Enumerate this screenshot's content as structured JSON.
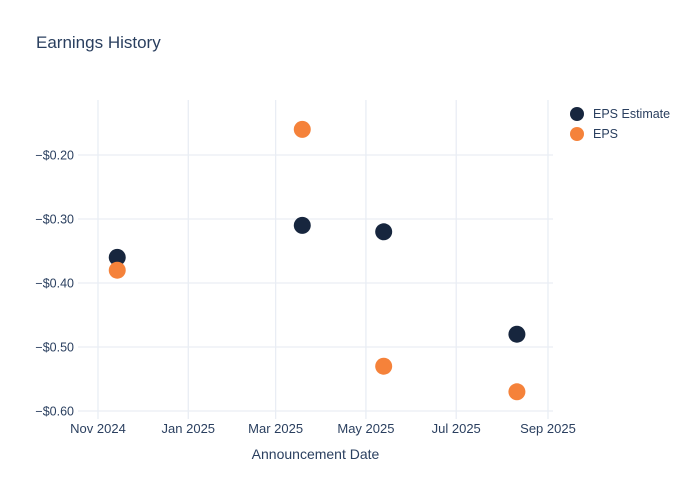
{
  "chart_data": {
    "type": "scatter",
    "title": "Earnings History",
    "xlabel": "Announcement Date",
    "ylabel": "",
    "grid": true,
    "legend_position": "top-right",
    "background_color": "#ffffff",
    "text_color": "#2a3f5f",
    "grid_color": "#e9edf4",
    "x_ticks": [
      {
        "label": "Nov 2024",
        "date": "2024-11-01"
      },
      {
        "label": "Jan 2025",
        "date": "2025-01-01"
      },
      {
        "label": "Mar 2025",
        "date": "2025-03-01"
      },
      {
        "label": "May 2025",
        "date": "2025-05-01"
      },
      {
        "label": "Jul 2025",
        "date": "2025-07-01"
      },
      {
        "label": "Sep 2025",
        "date": "2025-09-01"
      }
    ],
    "y_ticks": [
      {
        "label": "−$0.20",
        "value": -0.2
      },
      {
        "label": "−$0.30",
        "value": -0.3
      },
      {
        "label": "−$0.40",
        "value": -0.4
      },
      {
        "label": "−$0.50",
        "value": -0.5
      },
      {
        "label": "−$0.60",
        "value": -0.6
      }
    ],
    "ylim": [
      -0.635,
      -0.115
    ],
    "series": [
      {
        "name": "EPS Estimate",
        "color": "#17263e",
        "marker": "circle",
        "points": [
          {
            "x": "2024-11-14",
            "y": -0.36
          },
          {
            "x": "2025-03-19",
            "y": -0.31
          },
          {
            "x": "2025-05-13",
            "y": -0.32
          },
          {
            "x": "2025-08-11",
            "y": -0.48
          }
        ]
      },
      {
        "name": "EPS",
        "color": "#f5823a",
        "marker": "circle",
        "points": [
          {
            "x": "2024-11-14",
            "y": -0.38
          },
          {
            "x": "2025-03-19",
            "y": -0.16
          },
          {
            "x": "2025-05-13",
            "y": -0.53
          },
          {
            "x": "2025-08-11",
            "y": -0.57
          }
        ]
      }
    ]
  }
}
